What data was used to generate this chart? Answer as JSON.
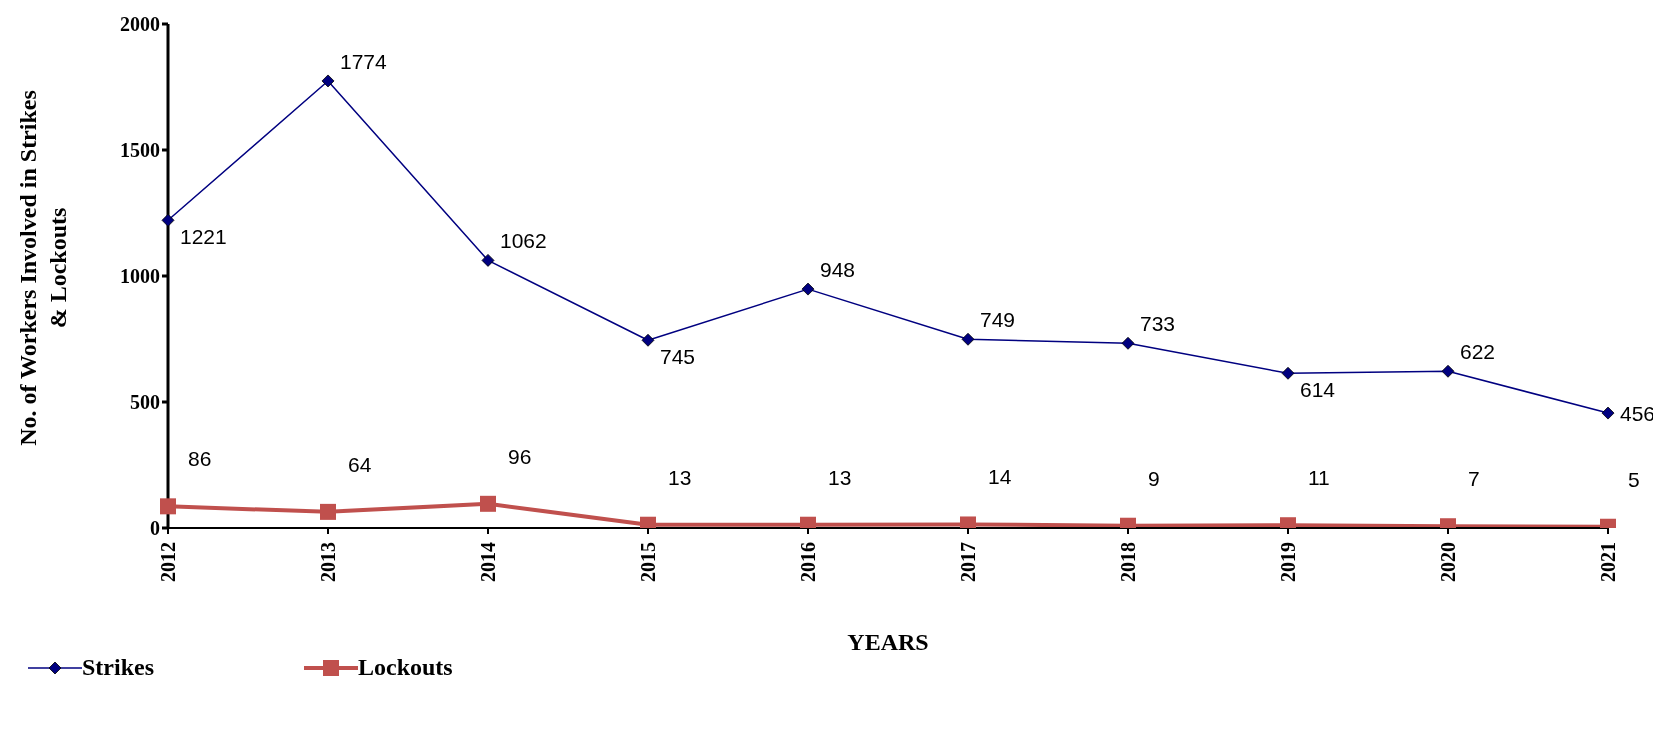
{
  "chart_data": {
    "type": "line",
    "xlabel": "YEARS",
    "ylabel": "No. of Workers Involved in Strikes & Lockouts",
    "categories": [
      "2012",
      "2013",
      "2014",
      "2015",
      "2016",
      "2017",
      "2018",
      "2019",
      "2020",
      "2021"
    ],
    "series": [
      {
        "name": "Strikes",
        "color": "#000080",
        "marker": "diamond",
        "values": [
          1221,
          1774,
          1062,
          745,
          948,
          749,
          733,
          614,
          622,
          456
        ]
      },
      {
        "name": "Lockouts",
        "color": "#c0504d",
        "marker": "square",
        "values": [
          86,
          64,
          96,
          13,
          13,
          14,
          9,
          11,
          7,
          5
        ]
      }
    ],
    "ylim": [
      0,
      2000
    ],
    "yticks": [
      0,
      500,
      1000,
      1500,
      2000
    ],
    "grid": false,
    "legend": "bottom left",
    "data_labels": true
  }
}
